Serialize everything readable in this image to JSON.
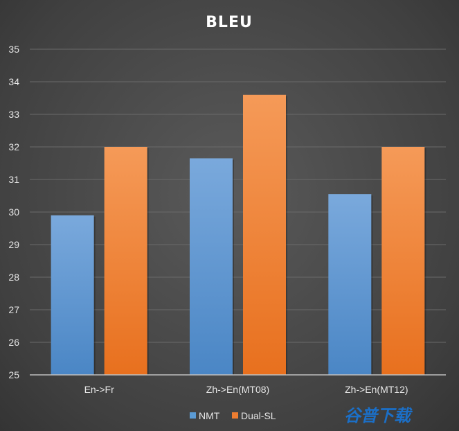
{
  "chart_data": {
    "type": "bar",
    "title": "BLEU",
    "xlabel": "",
    "ylabel": "",
    "ylim": [
      25,
      35
    ],
    "yticks": [
      25,
      26,
      27,
      28,
      29,
      30,
      31,
      32,
      33,
      34,
      35
    ],
    "categories": [
      "En->Fr",
      "Zh->En(MT08)",
      "Zh->En(MT12)"
    ],
    "series": [
      {
        "name": "NMT",
        "values": [
          29.9,
          31.65,
          30.55
        ]
      },
      {
        "name": "Dual-SL",
        "values": [
          32.0,
          33.6,
          32.0
        ]
      }
    ],
    "grid": true,
    "legend_position": "bottom"
  },
  "colors": {
    "background": "#444444",
    "grid": "#6a6a6a",
    "axis": "#bfbfbf",
    "text": "#e6e6e6",
    "title": "#ffffff",
    "series": [
      {
        "top": "#7aa9dc",
        "bottom": "#4a86c5",
        "legend": "#5b9bd5"
      },
      {
        "top": "#f59a58",
        "bottom": "#e8701e",
        "legend": "#ed7d31"
      }
    ],
    "watermark": "#1b6fc7"
  },
  "watermark": {
    "text": "谷普下载"
  }
}
